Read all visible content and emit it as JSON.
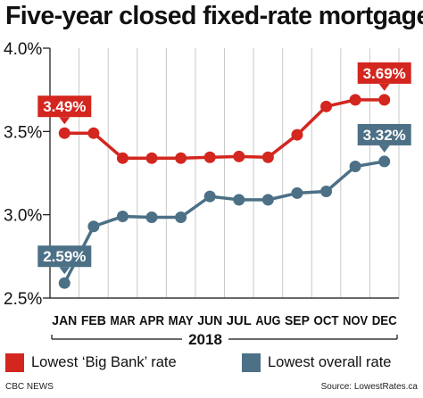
{
  "title": "Five-year closed fixed-rate mortgage",
  "chart_data": {
    "type": "line",
    "categories": [
      "JAN",
      "FEB",
      "MAR",
      "APR",
      "MAY",
      "JUN",
      "JUL",
      "AUG",
      "SEP",
      "OCT",
      "NOV",
      "DEC"
    ],
    "xlabel": "2018",
    "ylabel": "",
    "ylim": [
      2.5,
      4.0
    ],
    "yticks": [
      "2.5%",
      "3.0%",
      "3.5%",
      "4.0%"
    ],
    "ytick_values": [
      2.5,
      3.0,
      3.5,
      4.0
    ],
    "grid": "vertical",
    "series": [
      {
        "name": "Lowest ‘Big Bank’ rate",
        "color": "#d3261f",
        "values": [
          3.49,
          3.49,
          3.34,
          3.34,
          3.34,
          3.345,
          3.35,
          3.345,
          3.48,
          3.65,
          3.69,
          3.69
        ],
        "callouts": [
          {
            "index": 0,
            "label": "3.49%",
            "position": "above"
          },
          {
            "index": 11,
            "label": "3.69%",
            "position": "above"
          }
        ]
      },
      {
        "name": "Lowest overall rate",
        "color": "#4c7086",
        "values": [
          2.59,
          2.93,
          2.99,
          2.985,
          2.985,
          3.11,
          3.09,
          3.09,
          3.13,
          3.14,
          3.29,
          3.32
        ],
        "callouts": [
          {
            "index": 0,
            "label": "2.59%",
            "position": "above"
          },
          {
            "index": 11,
            "label": "3.32%",
            "position": "above"
          }
        ]
      }
    ]
  },
  "legend": {
    "big_bank_label": "Lowest ‘Big Bank’ rate",
    "overall_label": "Lowest overall rate"
  },
  "footer": {
    "source_left": "CBC NEWS",
    "source_right": "Source: LowestRates.ca"
  }
}
